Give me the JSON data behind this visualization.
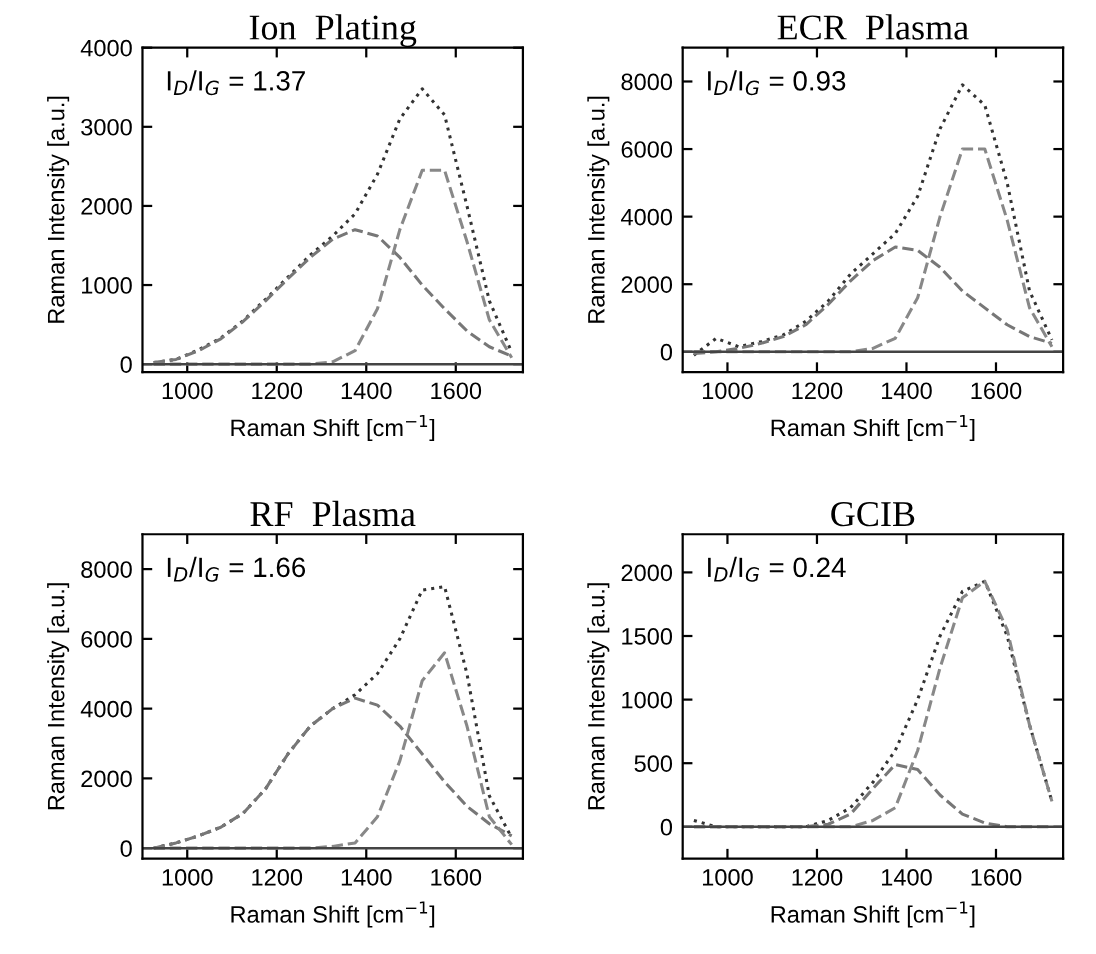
{
  "chart_data": [
    {
      "type": "line",
      "title": "Ion  Plating",
      "xlabel": "Raman Shift [cm$^{−1}$]",
      "ylabel": "Raman Intensity [a.u.]",
      "annotations": [
        "I$_{D}$/I$_{G}$ = 1.37"
      ],
      "xlim": [
        900,
        1750
      ],
      "xticks": [
        1000,
        1200,
        1400,
        1600
      ],
      "ylim": [
        -100,
        4000
      ],
      "yticks": [
        0,
        1000,
        2000,
        3000,
        4000
      ],
      "grid": false,
      "x": [
        925,
        975,
        1025,
        1075,
        1125,
        1175,
        1225,
        1275,
        1325,
        1375,
        1425,
        1475,
        1525,
        1575,
        1625,
        1675,
        1725
      ],
      "ref_lines": [
        {
          "axis": "y",
          "value": 0,
          "label": null,
          "color": "#444444"
        }
      ],
      "series": [
        {
          "color": "#333333",
          "line_style": "dotted",
          "values": [
            20,
            60,
            180,
            330,
            550,
            820,
            1100,
            1380,
            1620,
            1900,
            2400,
            3100,
            3480,
            3150,
            2000,
            800,
            150
          ]
        },
        {
          "color": "#777777",
          "line_style": "dashed",
          "values": [
            20,
            60,
            170,
            320,
            540,
            800,
            1080,
            1350,
            1580,
            1700,
            1620,
            1350,
            1000,
            700,
            420,
            220,
            100
          ]
        },
        {
          "color": "#888888",
          "line_style": "dashed",
          "values": [
            0,
            0,
            0,
            0,
            0,
            0,
            0,
            0,
            30,
            170,
            700,
            1700,
            2450,
            2450,
            1550,
            560,
            80
          ]
        }
      ]
    },
    {
      "type": "line",
      "title": "ECR  Plasma",
      "xlabel": "Raman Shift [cm$^{−1}$]",
      "ylabel": "Raman Intensity [a.u.]",
      "annotations": [
        "I$_{D}$/I$_{G}$ = 0.93"
      ],
      "xlim": [
        900,
        1750
      ],
      "xticks": [
        1000,
        1200,
        1400,
        1600
      ],
      "ylim": [
        -600,
        9000
      ],
      "yticks": [
        0,
        2000,
        4000,
        6000,
        8000
      ],
      "grid": false,
      "x": [
        925,
        975,
        1025,
        1075,
        1125,
        1175,
        1225,
        1275,
        1325,
        1375,
        1425,
        1475,
        1525,
        1575,
        1625,
        1675,
        1725
      ],
      "ref_lines": [
        {
          "axis": "y",
          "value": 0,
          "label": null,
          "color": "#444444"
        }
      ],
      "series": [
        {
          "color": "#333333",
          "line_style": "dotted",
          "values": [
            -100,
            400,
            150,
            300,
            500,
            900,
            1500,
            2300,
            2900,
            3500,
            4600,
            6600,
            7900,
            7300,
            5000,
            1800,
            350
          ]
        },
        {
          "color": "#777777",
          "line_style": "dashed",
          "values": [
            -50,
            0,
            100,
            250,
            450,
            800,
            1400,
            2100,
            2700,
            3100,
            3000,
            2500,
            1800,
            1300,
            800,
            450,
            250
          ]
        },
        {
          "color": "#888888",
          "line_style": "dashed",
          "values": [
            0,
            0,
            0,
            0,
            0,
            0,
            0,
            0,
            100,
            400,
            1600,
            4000,
            6000,
            6000,
            3900,
            1300,
            150
          ]
        }
      ]
    },
    {
      "type": "line",
      "title": "RF  Plasma",
      "xlabel": "Raman Shift [cm$^{−1}$]",
      "ylabel": "Raman Intensity [a.u.]",
      "annotations": [
        "I$_{D}$/I$_{G}$ = 1.66"
      ],
      "xlim": [
        900,
        1750
      ],
      "xticks": [
        1000,
        1200,
        1400,
        1600
      ],
      "ylim": [
        -300,
        9000
      ],
      "yticks": [
        0,
        2000,
        4000,
        6000,
        8000
      ],
      "grid": false,
      "x": [
        925,
        975,
        1025,
        1075,
        1125,
        1175,
        1225,
        1275,
        1325,
        1375,
        1425,
        1475,
        1525,
        1575,
        1625,
        1675,
        1725
      ],
      "ref_lines": [
        {
          "axis": "y",
          "value": 0,
          "label": null,
          "color": "#444444"
        }
      ],
      "series": [
        {
          "color": "#333333",
          "line_style": "dotted",
          "values": [
            0,
            150,
            350,
            600,
            1000,
            1700,
            2700,
            3500,
            4000,
            4400,
            5000,
            6000,
            7400,
            7500,
            5000,
            1500,
            300
          ]
        },
        {
          "color": "#777777",
          "line_style": "dashed",
          "values": [
            0,
            150,
            350,
            600,
            1000,
            1700,
            2700,
            3500,
            4000,
            4300,
            4100,
            3500,
            2700,
            1900,
            1200,
            700,
            350
          ]
        },
        {
          "color": "#888888",
          "line_style": "dashed",
          "values": [
            0,
            0,
            0,
            0,
            0,
            0,
            0,
            0,
            50,
            150,
            900,
            2500,
            4800,
            5600,
            3500,
            900,
            100
          ]
        }
      ]
    },
    {
      "type": "line",
      "title": "GCIB",
      "xlabel": "Raman Shift [cm$^{−1}$]",
      "ylabel": "Raman Intensity [a.u.]",
      "annotations": [
        "I$_{D}$/I$_{G}$ = 0.24"
      ],
      "xlim": [
        900,
        1750
      ],
      "xticks": [
        1000,
        1200,
        1400,
        1600
      ],
      "ylim": [
        -250,
        2300
      ],
      "yticks": [
        0,
        500,
        1000,
        1500,
        2000
      ],
      "grid": false,
      "x": [
        925,
        975,
        1025,
        1075,
        1125,
        1175,
        1225,
        1275,
        1325,
        1375,
        1425,
        1475,
        1525,
        1575,
        1625,
        1675,
        1725
      ],
      "ref_lines": [
        {
          "axis": "y",
          "value": 0,
          "label": null,
          "color": "#444444"
        }
      ],
      "series": [
        {
          "color": "#333333",
          "line_style": "dotted",
          "values": [
            50,
            0,
            0,
            0,
            0,
            0,
            50,
            150,
            350,
            600,
            1000,
            1500,
            1850,
            1930,
            1500,
            800,
            200
          ]
        },
        {
          "color": "#777777",
          "line_style": "dashed",
          "values": [
            0,
            0,
            0,
            0,
            0,
            0,
            20,
            100,
            300,
            490,
            450,
            250,
            100,
            30,
            0,
            0,
            0
          ]
        },
        {
          "color": "#888888",
          "line_style": "dashed",
          "values": [
            0,
            0,
            0,
            0,
            0,
            0,
            0,
            0,
            50,
            150,
            600,
            1250,
            1800,
            1930,
            1550,
            800,
            200
          ]
        }
      ]
    }
  ]
}
